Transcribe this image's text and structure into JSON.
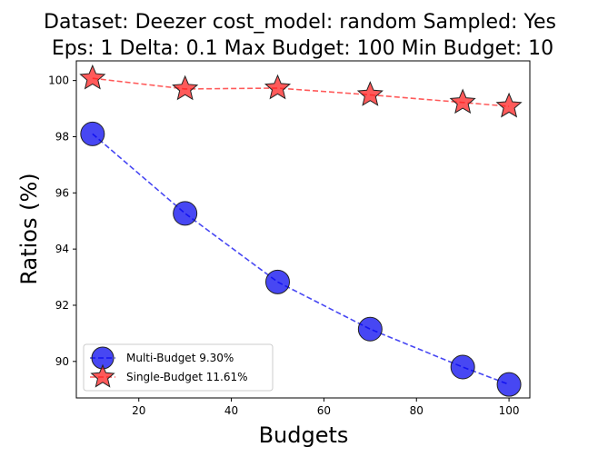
{
  "chart_data": {
    "type": "line",
    "title_lines": [
      "Dataset: Deezer cost_model: random Sampled: Yes",
      "Eps: 1 Delta: 0.1 Max Budget: 100 Min Budget: 10"
    ],
    "xlabel": "Budgets",
    "ylabel": "Ratios (%)",
    "x": [
      10,
      30,
      50,
      70,
      90,
      100
    ],
    "xlim": [
      6.5,
      104.5
    ],
    "ylim": [
      88.7,
      100.7
    ],
    "xticks": [
      20,
      40,
      60,
      80,
      100
    ],
    "yticks": [
      90,
      92,
      94,
      96,
      98,
      100
    ],
    "grid": false,
    "legend_position": "lower-left",
    "series": [
      {
        "name": "Multi-Budget 9.30%",
        "values": [
          98.1,
          95.27,
          92.83,
          91.15,
          89.8,
          89.18
        ],
        "color": "#0000ee",
        "marker": "circle"
      },
      {
        "name": "Single-Budget 11.61%",
        "values": [
          100.08,
          99.7,
          99.73,
          99.49,
          99.22,
          99.08
        ],
        "color": "#ff1a1a",
        "marker": "star"
      }
    ]
  }
}
